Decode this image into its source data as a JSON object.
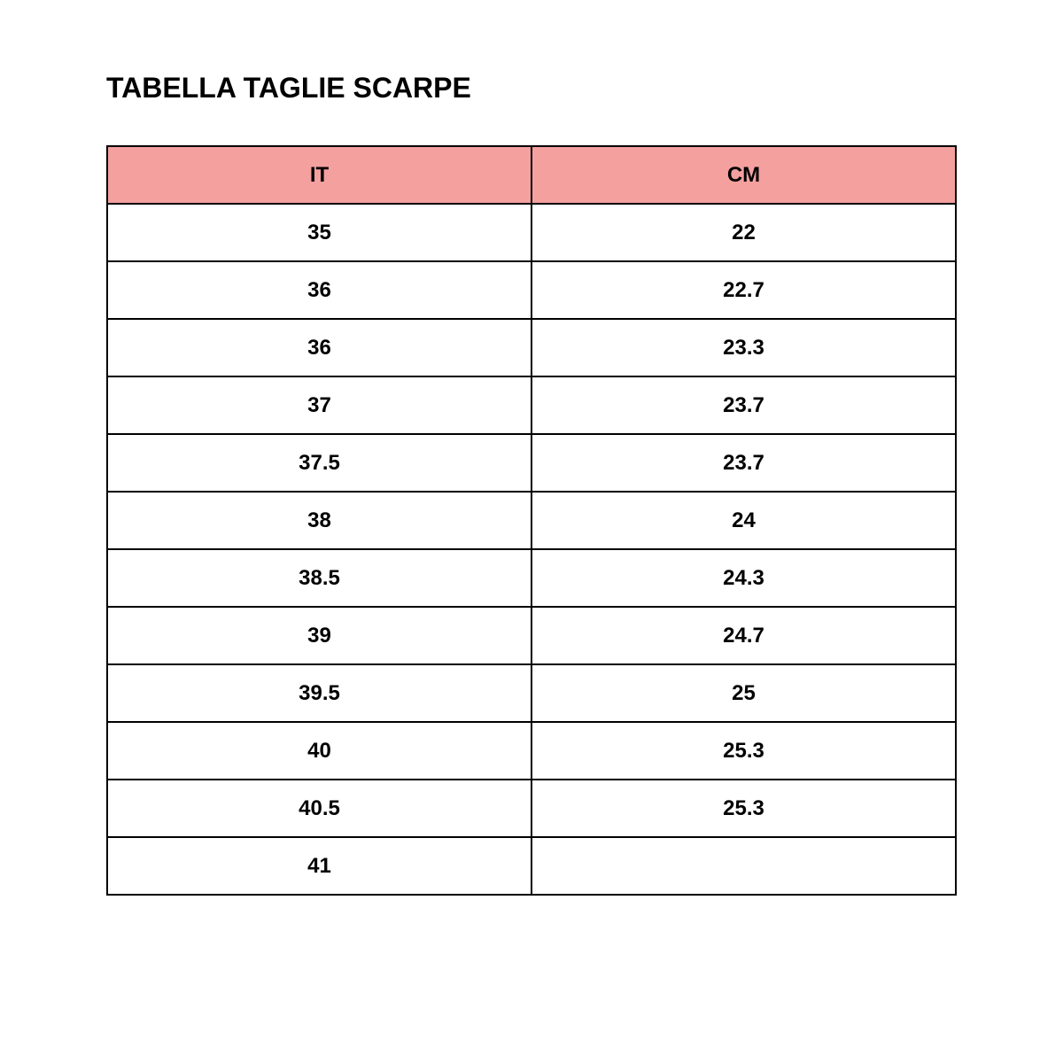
{
  "title": "TABELLA TAGLIE SCARPE",
  "header_color": "#f4a09f",
  "columns": [
    "IT",
    "CM"
  ],
  "rows": [
    [
      "35",
      "22"
    ],
    [
      "36",
      "22.7"
    ],
    [
      "36",
      "23.3"
    ],
    [
      "37",
      "23.7"
    ],
    [
      "37.5",
      "23.7"
    ],
    [
      "38",
      "24"
    ],
    [
      "38.5",
      "24.3"
    ],
    [
      "39",
      "24.7"
    ],
    [
      "39.5",
      "25"
    ],
    [
      "40",
      "25.3"
    ],
    [
      "40.5",
      "25.3"
    ],
    [
      "41",
      ""
    ]
  ]
}
